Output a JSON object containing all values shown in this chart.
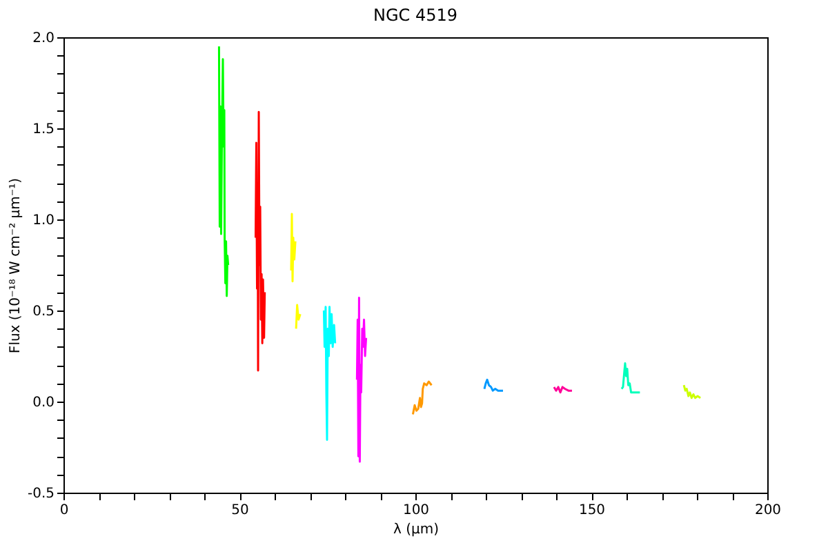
{
  "chart_data": {
    "type": "line",
    "title": "NGC 4519",
    "xlabel": "λ (μm)",
    "ylabel": "Flux (10⁻¹⁸ W cm⁻² μm⁻¹)",
    "xlim": [
      0,
      200
    ],
    "xticks": [
      0,
      {
        "value": 10,
        "label": null
      },
      {
        "value": 20,
        "label": null
      },
      {
        "value": 30,
        "label": null
      },
      {
        "value": 40,
        "label": null
      },
      50,
      {
        "value": 60,
        "label": null
      },
      {
        "value": 70,
        "label": null
      },
      {
        "value": 80,
        "label": null
      },
      {
        "value": 90,
        "label": null
      },
      100,
      {
        "value": 110,
        "label": null
      },
      {
        "value": 120,
        "label": null
      },
      {
        "value": 130,
        "label": null
      },
      {
        "value": 140,
        "label": null
      },
      150,
      {
        "value": 160,
        "label": null
      },
      {
        "value": 170,
        "label": null
      },
      {
        "value": 180,
        "label": null
      },
      {
        "value": 190,
        "label": null
      },
      200
    ],
    "ylim": [
      -0.5,
      2.0
    ],
    "yticks": [
      {
        "value": -0.5,
        "label": "-0.5"
      },
      {
        "value": -0.4,
        "label": null
      },
      {
        "value": -0.3,
        "label": null
      },
      {
        "value": -0.2,
        "label": null
      },
      {
        "value": -0.1,
        "label": null
      },
      {
        "value": 0,
        "label": "0.0"
      },
      {
        "value": 0.1,
        "label": null
      },
      {
        "value": 0.2,
        "label": null
      },
      {
        "value": 0.3,
        "label": null
      },
      {
        "value": 0.4,
        "label": null
      },
      {
        "value": 0.5,
        "label": "0.5"
      },
      {
        "value": 0.6,
        "label": null
      },
      {
        "value": 0.7,
        "label": null
      },
      {
        "value": 0.8,
        "label": null
      },
      {
        "value": 0.9,
        "label": null
      },
      {
        "value": 1,
        "label": "1.0"
      },
      {
        "value": 1.1,
        "label": null
      },
      {
        "value": 1.2,
        "label": null
      },
      {
        "value": 1.3,
        "label": null
      },
      {
        "value": 1.4,
        "label": null
      },
      {
        "value": 1.5,
        "label": "1.5"
      },
      {
        "value": 1.6,
        "label": null
      },
      {
        "value": 1.7,
        "label": null
      },
      {
        "value": 1.8,
        "label": null
      },
      {
        "value": 1.9,
        "label": null
      },
      {
        "value": 2,
        "label": "2.0"
      }
    ],
    "grid": false,
    "legend": false,
    "marker": "none",
    "line_style": "solid",
    "series": [
      {
        "color": "#00ff00",
        "x": [
          44.2,
          44.4,
          44.6,
          44.8,
          45.0,
          45.3,
          45.5,
          45.7,
          45.8,
          46.0,
          46.2,
          46.4,
          46.6,
          46.8
        ],
        "values": [
          1.95,
          0.96,
          1.62,
          0.92,
          1.4,
          1.88,
          1.4,
          1.6,
          0.9,
          0.65,
          0.88,
          0.58,
          0.8,
          0.75
        ]
      },
      {
        "color": "#ff0000",
        "x": [
          54.6,
          54.8,
          55.0,
          55.2,
          55.3,
          55.5,
          55.7,
          55.9,
          56.1,
          56.3,
          56.5,
          56.7,
          57.0,
          57.2
        ],
        "values": [
          0.9,
          1.42,
          0.62,
          1.05,
          0.17,
          1.59,
          0.75,
          1.07,
          0.45,
          0.7,
          0.32,
          0.67,
          0.35,
          0.6
        ]
      },
      {
        "color": "#ffff00",
        "x": [
          64.7,
          64.9,
          65.1,
          65.3,
          65.6,
          65.9
        ],
        "values": [
          0.72,
          1.03,
          0.66,
          0.9,
          0.78,
          0.88
        ]
      },
      {
        "color": "#ffff00",
        "x": [
          66.1,
          66.4,
          66.8,
          67.3
        ],
        "values": [
          0.4,
          0.53,
          0.45,
          0.48
        ]
      },
      {
        "color": "#00ffff",
        "x": [
          74.0,
          74.2,
          74.5,
          74.7,
          74.9,
          75.1,
          75.4,
          75.6,
          75.9,
          76.2,
          76.5,
          76.9,
          77.2
        ],
        "values": [
          0.5,
          0.3,
          0.52,
          0.05,
          -0.21,
          0.4,
          0.25,
          0.52,
          0.32,
          0.48,
          0.3,
          0.42,
          0.32
        ]
      },
      {
        "color": "#ff00ff",
        "x": [
          83.4,
          83.6,
          83.8,
          84.0,
          84.2,
          84.4,
          84.6,
          84.9,
          85.1,
          85.4,
          85.7,
          86.0
        ],
        "values": [
          0.12,
          0.45,
          -0.3,
          0.57,
          -0.33,
          0.2,
          0.05,
          0.4,
          0.3,
          0.45,
          0.25,
          0.35
        ]
      },
      {
        "color": "#ff9900",
        "x": [
          99.3,
          99.8,
          100.3,
          100.8,
          101.3,
          101.6,
          101.9,
          102.1,
          102.5,
          103.2,
          103.8,
          104.6
        ],
        "values": [
          -0.07,
          -0.02,
          -0.05,
          -0.04,
          0.02,
          -0.03,
          -0.01,
          0.07,
          0.1,
          0.09,
          0.11,
          0.09
        ]
      },
      {
        "color": "#0099ff",
        "x": [
          119.6,
          120.0,
          120.4,
          120.9,
          121.5,
          122.0,
          122.7,
          123.5,
          124.9
        ],
        "values": [
          0.07,
          0.1,
          0.12,
          0.09,
          0.08,
          0.06,
          0.07,
          0.06,
          0.06
        ]
      },
      {
        "color": "#ff0099",
        "x": [
          139.4,
          140.0,
          140.6,
          141.2,
          141.8,
          142.5,
          143.5,
          144.5
        ],
        "values": [
          0.08,
          0.06,
          0.08,
          0.05,
          0.08,
          0.07,
          0.06,
          0.06
        ]
      },
      {
        "color": "#00ffbb",
        "x": [
          158.6,
          159.0,
          159.4,
          159.6,
          159.9,
          160.2,
          160.5,
          160.9,
          161.3,
          162.5,
          163.8
        ],
        "values": [
          0.07,
          0.08,
          0.17,
          0.21,
          0.14,
          0.18,
          0.09,
          0.1,
          0.05,
          0.05,
          0.05
        ]
      },
      {
        "color": "#ccff00",
        "x": [
          176.3,
          176.7,
          177.1,
          177.6,
          178.0,
          178.5,
          179.0,
          179.5,
          180.2,
          181.0
        ],
        "values": [
          0.09,
          0.06,
          0.07,
          0.03,
          0.05,
          0.02,
          0.04,
          0.02,
          0.03,
          0.02
        ]
      }
    ]
  }
}
